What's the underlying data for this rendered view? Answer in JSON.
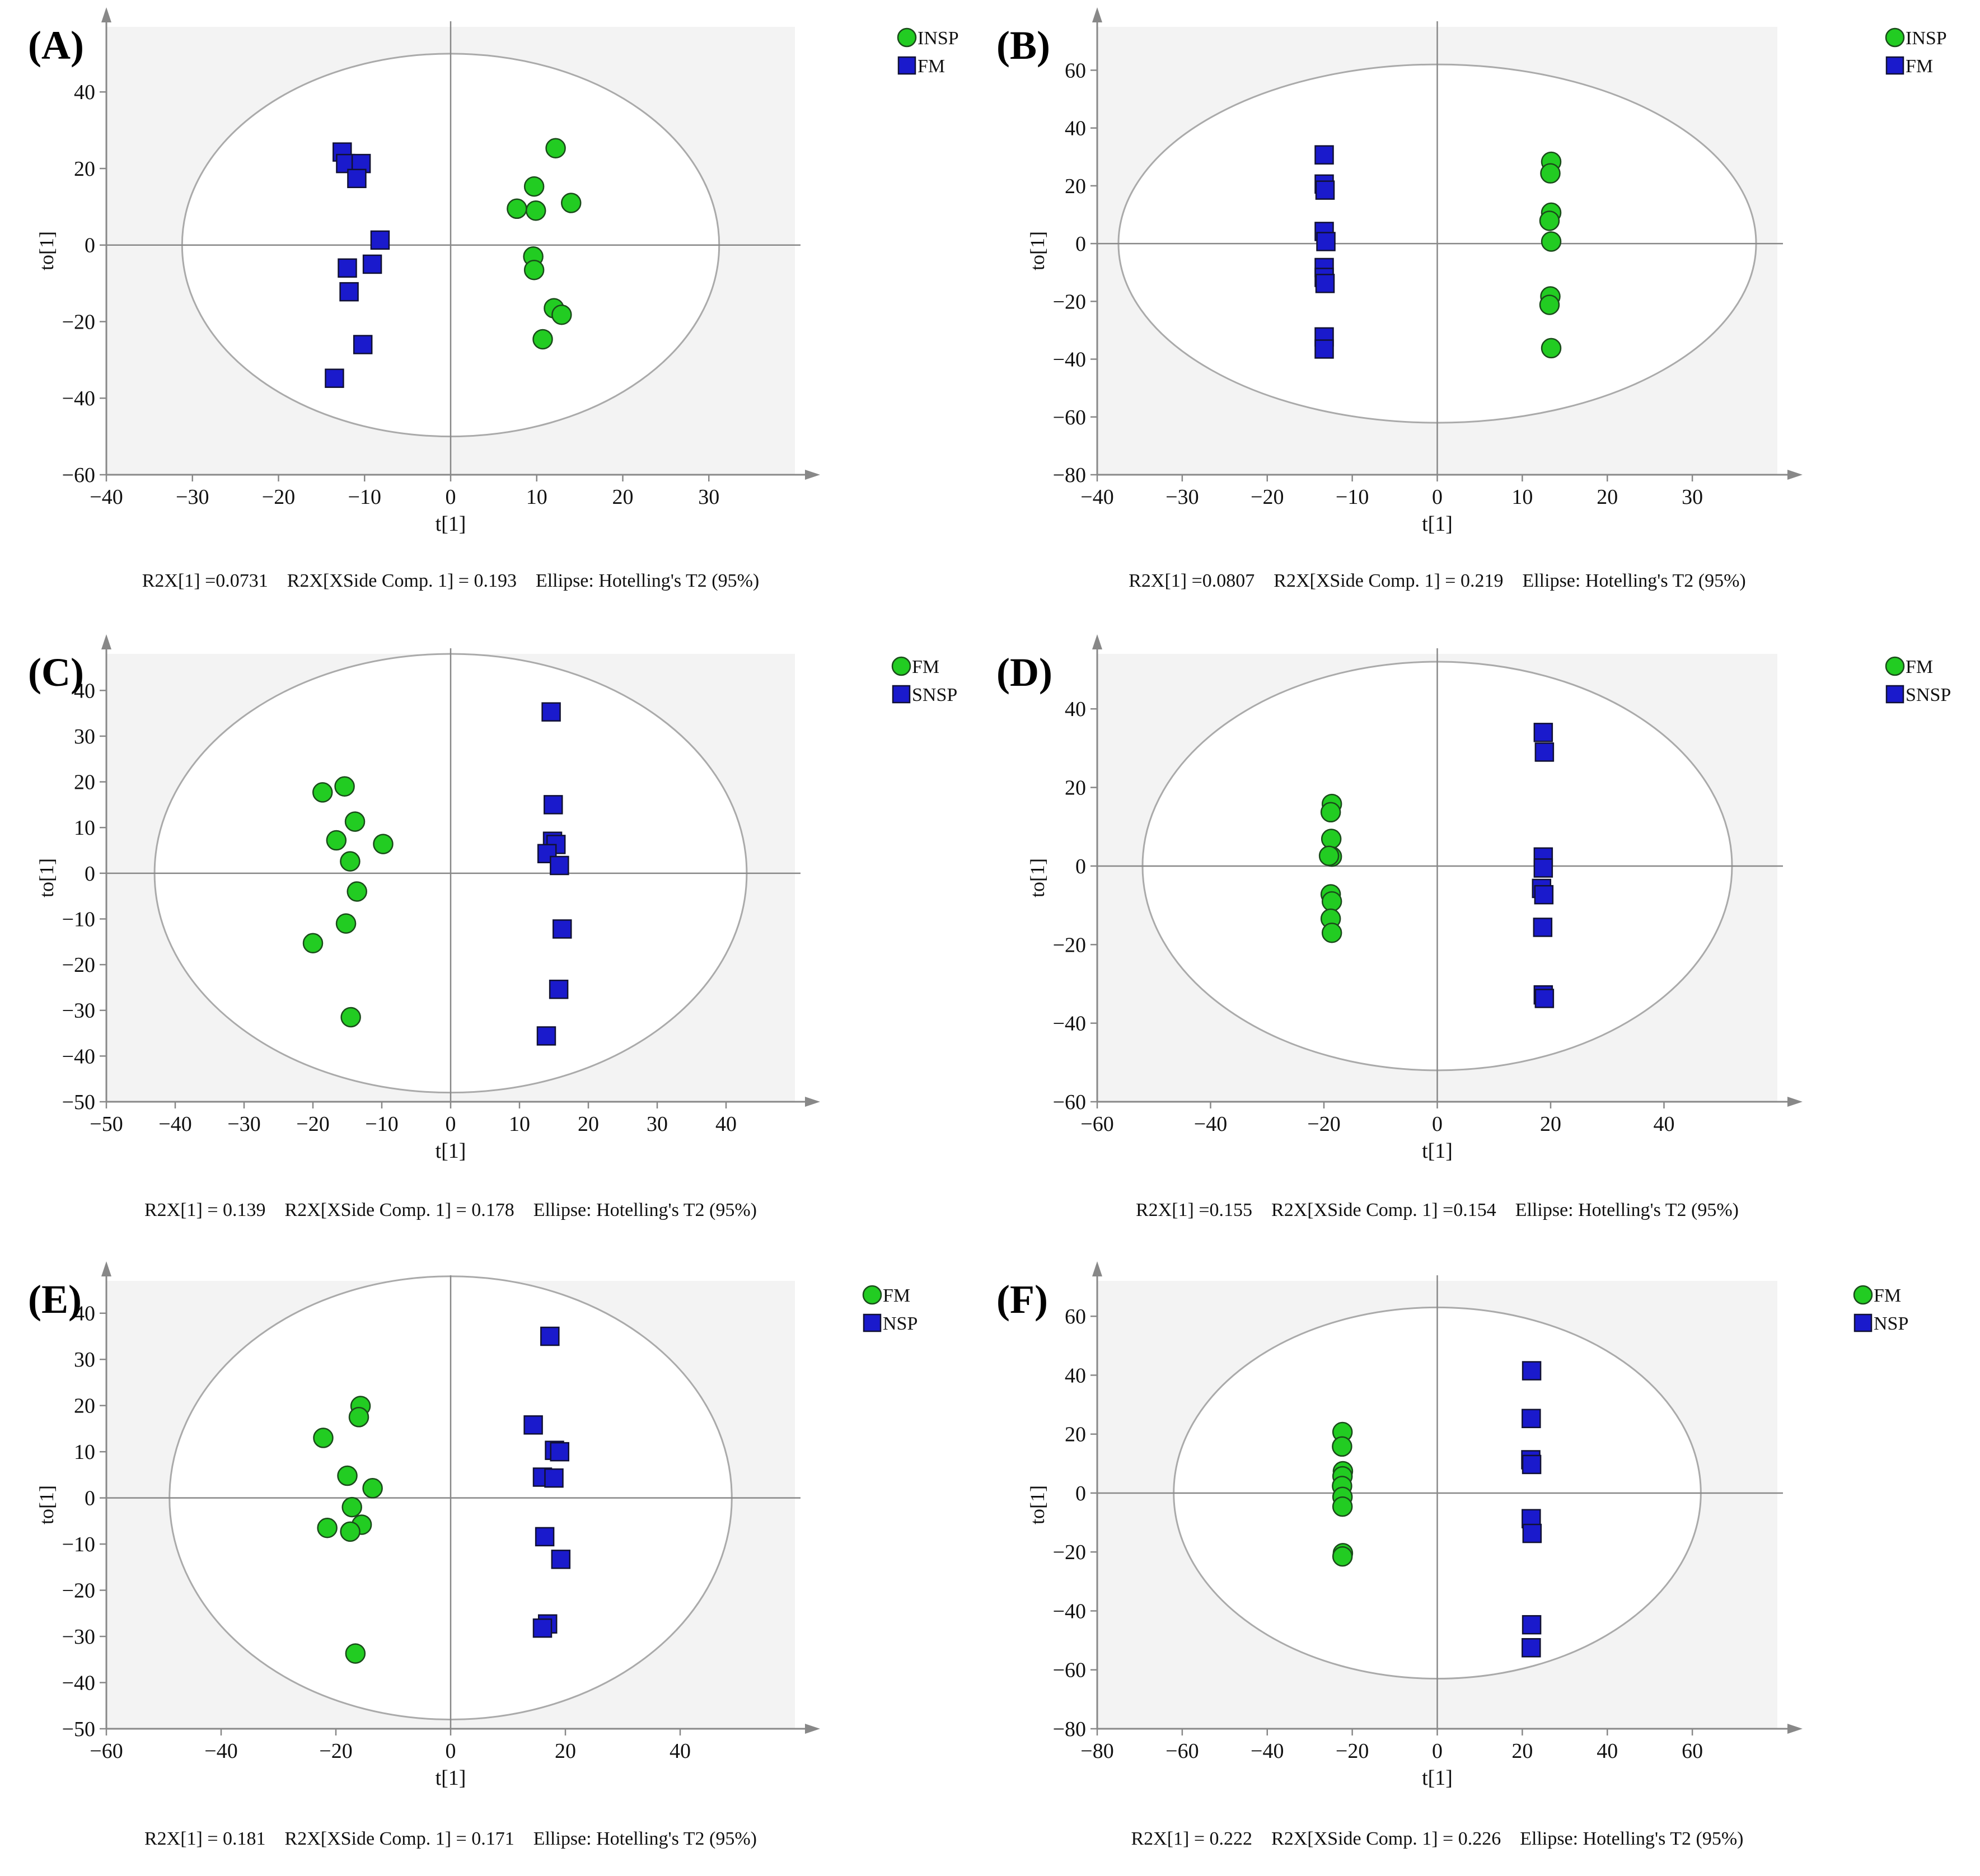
{
  "colors": {
    "group_green": "#22cc22",
    "group_blue": "#1a1acc",
    "ellipse": "#aaaaaa",
    "axis": "#888888",
    "plot_bg": "#f3f3f3"
  },
  "chart_data": [
    {
      "panel": "(A)",
      "type": "scatter",
      "xlabel": "t[1]",
      "ylabel": "to[1]",
      "xlim": [
        -40,
        40
      ],
      "ylim": [
        -60,
        57
      ],
      "xticks": [
        -40,
        -30,
        -20,
        -10,
        0,
        10,
        20,
        30
      ],
      "yticks": [
        -60,
        -40,
        -20,
        0,
        20,
        40
      ],
      "ellipse": {
        "rx": 31.2,
        "ry": 50
      },
      "footer": "R2X[1] =0.0731    R2X[XSide Comp. 1] = 0.193    Ellipse: Hotelling's T2 (95%)",
      "series": [
        {
          "name": "INSP",
          "marker": "circle",
          "color": "#22cc22",
          "points": [
            [
              12.2,
              25.3
            ],
            [
              9.7,
              15.3
            ],
            [
              7.7,
              9.5
            ],
            [
              9.9,
              9
            ],
            [
              14,
              11
            ],
            [
              9.6,
              -3
            ],
            [
              9.7,
              -6.5
            ],
            [
              12,
              -16.5
            ],
            [
              12.9,
              -18.2
            ],
            [
              10.7,
              -24.6
            ]
          ]
        },
        {
          "name": "FM",
          "marker": "square",
          "color": "#1a1acc",
          "points": [
            [
              -12.6,
              24.3
            ],
            [
              -12.2,
              21.3
            ],
            [
              -10.4,
              21.3
            ],
            [
              -10.9,
              17.4
            ],
            [
              -8.2,
              1.3
            ],
            [
              -9.1,
              -5
            ],
            [
              -12,
              -6
            ],
            [
              -11.8,
              -12.2
            ],
            [
              -10.2,
              -26
            ],
            [
              -13.5,
              -34.8
            ]
          ]
        }
      ]
    },
    {
      "panel": "(B)",
      "type": "scatter",
      "xlabel": "t[1]",
      "ylabel": "to[1]",
      "xlim": [
        -40,
        40
      ],
      "ylim": [
        -80,
        75
      ],
      "xticks": [
        -40,
        -30,
        -20,
        -10,
        0,
        10,
        20,
        30
      ],
      "yticks": [
        -80,
        -60,
        -40,
        -20,
        0,
        20,
        40,
        60
      ],
      "ellipse": {
        "rx": 37.5,
        "ry": 62
      },
      "footer": "R2X[1] =0.0807    R2X[XSide Comp. 1] = 0.219    Ellipse: Hotelling's T2 (95%)",
      "series": [
        {
          "name": "INSP",
          "marker": "circle",
          "color": "#22cc22",
          "points": [
            [
              13.4,
              28.3
            ],
            [
              13.3,
              24.3
            ],
            [
              13.4,
              10.7
            ],
            [
              13.2,
              7.9
            ],
            [
              13.4,
              0.7
            ],
            [
              13.3,
              -18.3
            ],
            [
              13.2,
              -21.2
            ],
            [
              13.4,
              -36.2
            ]
          ]
        },
        {
          "name": "FM",
          "marker": "square",
          "color": "#1a1acc",
          "points": [
            [
              -13.3,
              30.7
            ],
            [
              -13.3,
              20.6
            ],
            [
              -13.2,
              18.5
            ],
            [
              -13.3,
              4.2
            ],
            [
              -13.1,
              0.7
            ],
            [
              -13.3,
              -8.3
            ],
            [
              -13.3,
              -11.7
            ],
            [
              -13.2,
              -13.8
            ],
            [
              -13.3,
              -32.3
            ],
            [
              -13.3,
              -36.5
            ]
          ]
        }
      ]
    },
    {
      "panel": "(C)",
      "type": "scatter",
      "xlabel": "t[1]",
      "ylabel": "to[1]",
      "xlim": [
        -50,
        50
      ],
      "ylim": [
        -50,
        48
      ],
      "xticks": [
        -50,
        -40,
        -30,
        -20,
        -10,
        0,
        10,
        20,
        30,
        40
      ],
      "yticks": [
        -50,
        -40,
        -30,
        -20,
        -10,
        0,
        10,
        20,
        30,
        40
      ],
      "ellipse": {
        "rx": 43,
        "ry": 48
      },
      "footer": "R2X[1] = 0.139    R2X[XSide Comp. 1] = 0.178    Ellipse: Hotelling's T2 (95%)",
      "series": [
        {
          "name": "FM",
          "marker": "circle",
          "color": "#22cc22",
          "points": [
            [
              -18.6,
              17.7
            ],
            [
              -15.4,
              19
            ],
            [
              -13.9,
              11.3
            ],
            [
              -16.6,
              7.2
            ],
            [
              -14.6,
              2.6
            ],
            [
              -9.8,
              6.4
            ],
            [
              -13.6,
              -4
            ],
            [
              -15.2,
              -11
            ],
            [
              -20,
              -15.3
            ],
            [
              -14.5,
              -31.5
            ]
          ]
        },
        {
          "name": "SNSP",
          "marker": "square",
          "color": "#1a1acc",
          "points": [
            [
              14.6,
              35.3
            ],
            [
              14.9,
              15
            ],
            [
              14.8,
              7
            ],
            [
              15.3,
              6.3
            ],
            [
              14,
              4.3
            ],
            [
              15.8,
              1.7
            ],
            [
              16.2,
              -12.2
            ],
            [
              15.7,
              -25.4
            ],
            [
              13.9,
              -35.6
            ]
          ]
        }
      ]
    },
    {
      "panel": "(D)",
      "type": "scatter",
      "xlabel": "t[1]",
      "ylabel": "to[1]",
      "xlim": [
        -60,
        60
      ],
      "ylim": [
        -60,
        54
      ],
      "xticks": [
        -60,
        -40,
        -20,
        0,
        20,
        40
      ],
      "yticks": [
        -60,
        -40,
        -20,
        0,
        20,
        40
      ],
      "ellipse": {
        "rx": 52,
        "ry": 52
      },
      "footer": "R2X[1] =0.155    R2X[XSide Comp. 1] =0.154    Ellipse: Hotelling's T2 (95%)",
      "series": [
        {
          "name": "FM",
          "marker": "circle",
          "color": "#22cc22",
          "points": [
            [
              -18.6,
              15.8
            ],
            [
              -18.8,
              13.7
            ],
            [
              -18.7,
              6.9
            ],
            [
              -18.6,
              2.4
            ],
            [
              -19.1,
              2.6
            ],
            [
              -18.8,
              -7.2
            ],
            [
              -18.6,
              -9
            ],
            [
              -18.8,
              -13.4
            ],
            [
              -18.6,
              -17
            ]
          ]
        },
        {
          "name": "SNSP",
          "marker": "square",
          "color": "#1a1acc",
          "points": [
            [
              18.7,
              34
            ],
            [
              18.9,
              29
            ],
            [
              18.7,
              2.3
            ],
            [
              18.7,
              -0.5
            ],
            [
              18.4,
              -5.7
            ],
            [
              18.8,
              -7.3
            ],
            [
              18.6,
              -15.6
            ],
            [
              18.7,
              -32.8
            ],
            [
              18.9,
              -33.7
            ]
          ]
        }
      ]
    },
    {
      "panel": "(E)",
      "type": "scatter",
      "xlabel": "t[1]",
      "ylabel": "to[1]",
      "xlim": [
        -60,
        60
      ],
      "ylim": [
        -50,
        47
      ],
      "xticks": [
        -60,
        -40,
        -20,
        0,
        20,
        40
      ],
      "yticks": [
        -50,
        -40,
        -30,
        -20,
        -10,
        0,
        10,
        20,
        30,
        40
      ],
      "ellipse": {
        "rx": 49,
        "ry": 48
      },
      "footer": "R2X[1] = 0.181    R2X[XSide Comp. 1] = 0.171    Ellipse: Hotelling's T2 (95%)",
      "series": [
        {
          "name": "FM",
          "marker": "circle",
          "color": "#22cc22",
          "points": [
            [
              -15.7,
              19.9
            ],
            [
              -16,
              17.5
            ],
            [
              -22.2,
              13
            ],
            [
              -18,
              4.8
            ],
            [
              -13.6,
              2.1
            ],
            [
              -17.2,
              -2
            ],
            [
              -15.5,
              -5.8
            ],
            [
              -21.5,
              -6.5
            ],
            [
              -17.5,
              -7.3
            ],
            [
              -16.6,
              -33.7
            ]
          ]
        },
        {
          "name": "NSP",
          "marker": "square",
          "color": "#1a1acc",
          "points": [
            [
              17.3,
              35
            ],
            [
              14.4,
              15.8
            ],
            [
              18.1,
              10.3
            ],
            [
              19,
              10
            ],
            [
              16,
              4.5
            ],
            [
              18,
              4.3
            ],
            [
              16.4,
              -8.4
            ],
            [
              19.2,
              -13.3
            ],
            [
              16.9,
              -27.3
            ],
            [
              16,
              -28.2
            ]
          ]
        }
      ]
    },
    {
      "panel": "(F)",
      "type": "scatter",
      "xlabel": "t[1]",
      "ylabel": "to[1]",
      "xlim": [
        -80,
        80
      ],
      "ylim": [
        -80,
        72
      ],
      "xticks": [
        -80,
        -60,
        -40,
        -20,
        0,
        20,
        40,
        60
      ],
      "yticks": [
        -80,
        -60,
        -40,
        -20,
        0,
        20,
        40,
        60
      ],
      "ellipse": {
        "rx": 62,
        "ry": 63
      },
      "footer": "R2X[1] = 0.222    R2X[XSide Comp. 1] = 0.226    Ellipse: Hotelling's T2 (95%)",
      "series": [
        {
          "name": "FM",
          "marker": "circle",
          "color": "#22cc22",
          "points": [
            [
              -22.3,
              20.7
            ],
            [
              -22.4,
              15.8
            ],
            [
              -22.2,
              7.4
            ],
            [
              -22.3,
              5.7
            ],
            [
              -22.4,
              2.4
            ],
            [
              -22.3,
              -1.3
            ],
            [
              -22.3,
              -4.6
            ],
            [
              -22.2,
              -20.4
            ],
            [
              -22.3,
              -21.5
            ]
          ]
        },
        {
          "name": "NSP",
          "marker": "square",
          "color": "#1a1acc",
          "points": [
            [
              22.2,
              41.5
            ],
            [
              22.1,
              25.3
            ],
            [
              22,
              11.3
            ],
            [
              22.2,
              9.7
            ],
            [
              22.1,
              -8.7
            ],
            [
              22.3,
              -13.7
            ],
            [
              22.2,
              -44.7
            ],
            [
              22.1,
              -52.5
            ]
          ]
        }
      ]
    }
  ]
}
